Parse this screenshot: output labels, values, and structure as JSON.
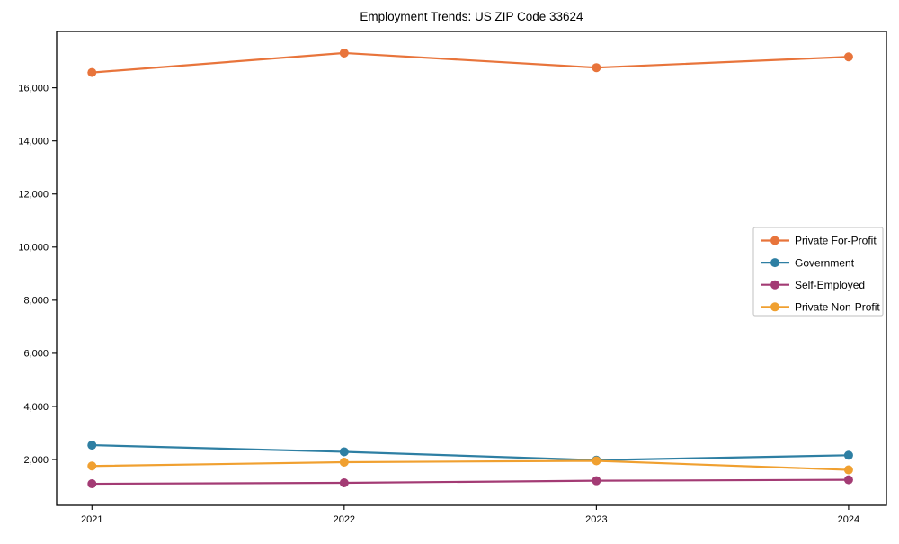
{
  "page": {
    "background": "#ffffff"
  },
  "chart_data": {
    "type": "line",
    "title": "Employment Trends: US ZIP Code 33624",
    "x": [
      2021,
      2022,
      2023,
      2024
    ],
    "x_tick_labels": [
      "2021",
      "2022",
      "2023",
      "2024"
    ],
    "y_tick_labels": [
      "2,000",
      "4,000",
      "6,000",
      "8,000",
      "10,000",
      "12,000",
      "14,000",
      "16,000"
    ],
    "yticks": [
      2000,
      4000,
      6000,
      8000,
      10000,
      12000,
      14000,
      16000
    ],
    "series": [
      {
        "name": "Private For-Profit",
        "color": "#e8743b",
        "values": [
          16575,
          17310,
          16760,
          17165
        ]
      },
      {
        "name": "Government",
        "color": "#2e7fa3",
        "values": [
          2540,
          2290,
          1975,
          2160
        ]
      },
      {
        "name": "Self-Employed",
        "color": "#a33b74",
        "values": [
          1085,
          1120,
          1200,
          1235
        ]
      },
      {
        "name": "Private Non-Profit",
        "color": "#f0a030",
        "values": [
          1755,
          1900,
          1950,
          1610
        ]
      }
    ],
    "xlim": [
      2020.86,
      2024.15
    ],
    "ylim": [
      274,
      18121
    ],
    "grid": false,
    "legend_position": "center-right",
    "axis_color": "#000000",
    "legend_border_color": "#cccccc",
    "marker": "circle",
    "xlabel": "",
    "ylabel": ""
  }
}
